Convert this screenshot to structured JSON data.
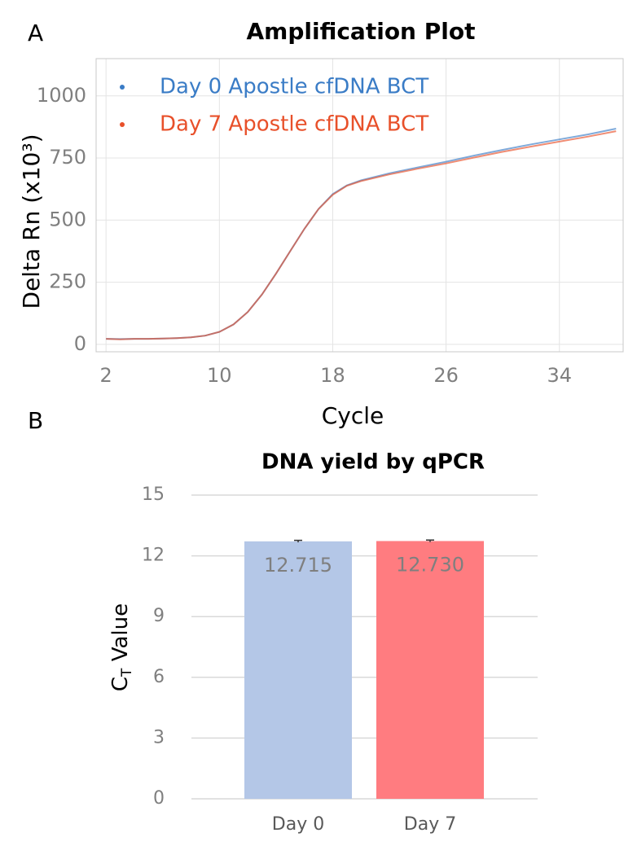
{
  "chart_data": [
    {
      "type": "line",
      "panel": "A",
      "title": "Amplification Plot",
      "xlabel": "Cycle",
      "ylabel": "Delta Rn (x10³)",
      "x": [
        2,
        3,
        4,
        5,
        6,
        7,
        8,
        9,
        10,
        11,
        12,
        13,
        14,
        15,
        16,
        17,
        18,
        19,
        20,
        22,
        24,
        26,
        28,
        30,
        32,
        34,
        36,
        38
      ],
      "series": [
        {
          "name": "Day 0 Apostle cfDNA BCT",
          "color": "#3a7cc6",
          "values": [
            22,
            21,
            22,
            22,
            23,
            25,
            28,
            35,
            50,
            80,
            130,
            200,
            285,
            375,
            465,
            545,
            605,
            640,
            660,
            688,
            712,
            735,
            760,
            783,
            805,
            825,
            845,
            868
          ]
        },
        {
          "name": "Day 7 Apostle cfDNA BCT",
          "color": "#e8502a",
          "values": [
            22,
            20,
            22,
            22,
            23,
            25,
            28,
            35,
            50,
            80,
            130,
            200,
            285,
            375,
            465,
            545,
            602,
            638,
            657,
            684,
            707,
            728,
            752,
            775,
            796,
            816,
            836,
            858
          ]
        }
      ],
      "xlim": [
        1.3,
        38.5
      ],
      "xticks": [
        2,
        10,
        18,
        26,
        34
      ],
      "ylim": [
        -30,
        1150
      ],
      "yticks": [
        0,
        250,
        500,
        750,
        1000
      ],
      "grid": true,
      "legend": "upper left"
    },
    {
      "type": "bar",
      "panel": "B",
      "title": "DNA yield by qPCR",
      "ylabel": {
        "main": "C",
        "sub": "T",
        "rest": " Value"
      },
      "categories": [
        "Day 0",
        "Day 7"
      ],
      "values": [
        12.715,
        12.73
      ],
      "value_labels": [
        "12.715",
        "12.730"
      ],
      "errors": [
        0.05,
        0.05
      ],
      "colors": [
        "#b4c7e7",
        "#ff7c80"
      ],
      "ylim": [
        0,
        15
      ],
      "yticks": [
        0,
        3,
        6,
        9,
        12,
        15
      ],
      "grid": true
    }
  ]
}
